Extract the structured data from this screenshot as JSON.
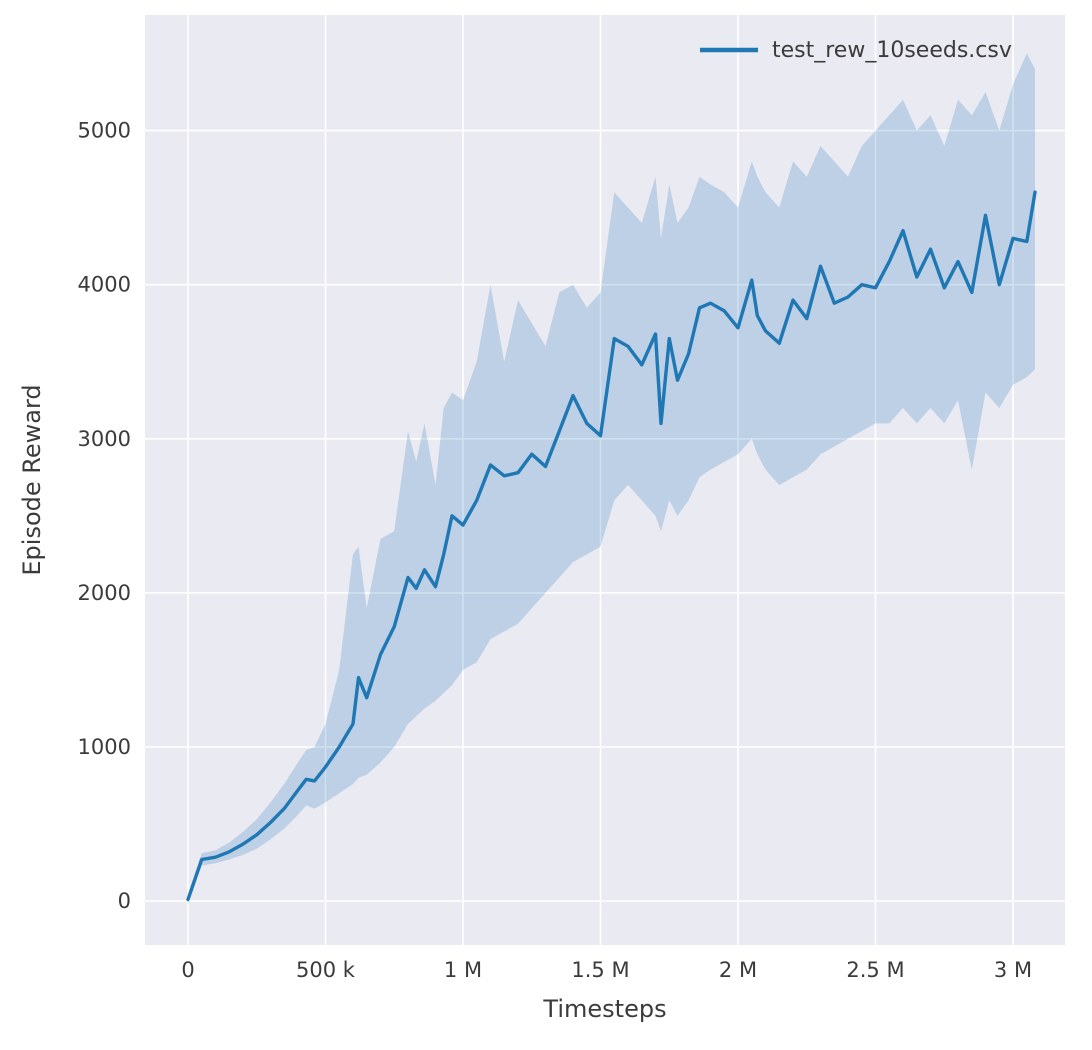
{
  "figure": {
    "background": "#ffffff",
    "plot_background": "#eaeaf2",
    "grid_color": "#ffffff"
  },
  "legend": {
    "label": "test_rew_10seeds.csv"
  },
  "chart_data": {
    "type": "line",
    "title": "",
    "xlabel": "Timesteps",
    "ylabel": "Episode Reward",
    "legend_position": "upper right",
    "grid": true,
    "line_color": "#1f77b4",
    "band_color": "#1f77b4",
    "band_opacity": 0.22,
    "xlim": [
      -156363,
      3189090
    ],
    "ylim": [
      -285,
      5750
    ],
    "x_ticks": [
      {
        "value": 0,
        "label": "0"
      },
      {
        "value": 500000,
        "label": "500 k"
      },
      {
        "value": 1000000,
        "label": "1 M"
      },
      {
        "value": 1500000,
        "label": "1.5 M"
      },
      {
        "value": 2000000,
        "label": "2 M"
      },
      {
        "value": 2500000,
        "label": "2.5 M"
      },
      {
        "value": 3000000,
        "label": "3 M"
      }
    ],
    "y_ticks": [
      {
        "value": 0,
        "label": "0"
      },
      {
        "value": 1000,
        "label": "1000"
      },
      {
        "value": 2000,
        "label": "2000"
      },
      {
        "value": 3000,
        "label": "3000"
      },
      {
        "value": 4000,
        "label": "4000"
      },
      {
        "value": 5000,
        "label": "5000"
      }
    ],
    "series": [
      {
        "name": "test_rew_10seeds.csv",
        "x": [
          0,
          50000,
          100000,
          150000,
          200000,
          250000,
          300000,
          350000,
          400000,
          430000,
          460000,
          500000,
          550000,
          600000,
          620000,
          650000,
          700000,
          750000,
          800000,
          830000,
          860000,
          900000,
          930000,
          960000,
          1000000,
          1050000,
          1100000,
          1150000,
          1200000,
          1250000,
          1300000,
          1350000,
          1400000,
          1450000,
          1500000,
          1550000,
          1600000,
          1650000,
          1700000,
          1720000,
          1750000,
          1780000,
          1820000,
          1860000,
          1900000,
          1950000,
          2000000,
          2050000,
          2070000,
          2100000,
          2150000,
          2200000,
          2250000,
          2300000,
          2350000,
          2400000,
          2450000,
          2500000,
          2550000,
          2600000,
          2650000,
          2700000,
          2750000,
          2800000,
          2850000,
          2900000,
          2950000,
          3000000,
          3050000,
          3080000
        ],
        "mean": [
          10,
          270,
          285,
          320,
          370,
          430,
          510,
          600,
          720,
          790,
          780,
          870,
          1000,
          1150,
          1450,
          1320,
          1600,
          1780,
          2100,
          2030,
          2150,
          2040,
          2250,
          2500,
          2440,
          2600,
          2830,
          2760,
          2780,
          2900,
          2820,
          3050,
          3280,
          3100,
          3020,
          3650,
          3600,
          3480,
          3680,
          3100,
          3650,
          3380,
          3550,
          3850,
          3880,
          3830,
          3720,
          4030,
          3800,
          3700,
          3620,
          3900,
          3780,
          4120,
          3880,
          3920,
          4000,
          3980,
          4150,
          4350,
          4050,
          4230,
          3980,
          4150,
          3950,
          4450,
          4000,
          4300,
          4280,
          4600
        ],
        "lower": [
          -20,
          230,
          245,
          270,
          300,
          340,
          400,
          470,
          560,
          620,
          600,
          640,
          700,
          760,
          800,
          820,
          900,
          1000,
          1150,
          1200,
          1250,
          1300,
          1350,
          1400,
          1500,
          1550,
          1700,
          1750,
          1800,
          1900,
          2000,
          2100,
          2200,
          2250,
          2300,
          2600,
          2700,
          2600,
          2500,
          2400,
          2600,
          2500,
          2600,
          2750,
          2800,
          2850,
          2900,
          3000,
          2900,
          2800,
          2700,
          2750,
          2800,
          2900,
          2950,
          3000,
          3050,
          3100,
          3100,
          3200,
          3100,
          3200,
          3100,
          3250,
          2800,
          3300,
          3200,
          3350,
          3400,
          3450
        ],
        "upper": [
          40,
          310,
          330,
          380,
          450,
          530,
          640,
          760,
          900,
          980,
          1000,
          1150,
          1500,
          2250,
          2300,
          1900,
          2350,
          2400,
          3050,
          2850,
          3100,
          2700,
          3200,
          3300,
          3250,
          3500,
          4000,
          3500,
          3900,
          3750,
          3600,
          3950,
          4000,
          3850,
          3950,
          4600,
          4500,
          4400,
          4700,
          4300,
          4650,
          4400,
          4500,
          4700,
          4650,
          4600,
          4500,
          4800,
          4700,
          4600,
          4500,
          4800,
          4700,
          4900,
          4800,
          4700,
          4900,
          5000,
          5100,
          5200,
          5000,
          5100,
          4900,
          5200,
          5100,
          5250,
          5000,
          5300,
          5500,
          5400
        ]
      }
    ]
  }
}
